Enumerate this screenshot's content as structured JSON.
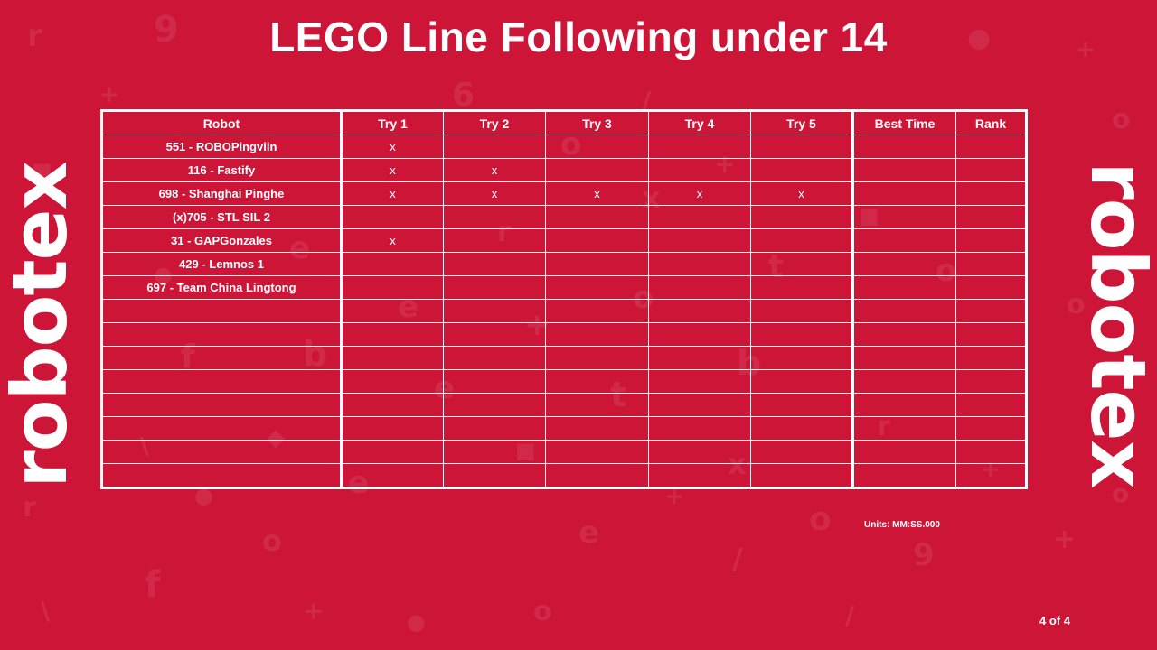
{
  "title": "LEGO Line Following under 14",
  "brand": "robotex",
  "colors": {
    "background": "#cd1537",
    "foreground": "#ffffff"
  },
  "table": {
    "headers": [
      "Robot",
      "Try 1",
      "Try 2",
      "Try 3",
      "Try 4",
      "Try 5",
      "Best Time",
      "Rank"
    ],
    "rows": [
      [
        "551 - ROBOPingviin",
        "x",
        "",
        "",
        "",
        "",
        "",
        ""
      ],
      [
        "116 - Fastify",
        "x",
        "x",
        "",
        "",
        "",
        "",
        ""
      ],
      [
        "698 - Shanghai Pinghe",
        "x",
        "x",
        "x",
        "x",
        "x",
        "",
        ""
      ],
      [
        "(x)705 - STL SIL 2",
        "",
        "",
        "",
        "",
        "",
        "",
        ""
      ],
      [
        "31 - GAPGonzales",
        "x",
        "",
        "",
        "",
        "",
        "",
        ""
      ],
      [
        "429 - Lemnos 1",
        "",
        "",
        "",
        "",
        "",
        "",
        ""
      ],
      [
        "697 - Team China Lingtong",
        "",
        "",
        "",
        "",
        "",
        "",
        ""
      ],
      [
        "",
        "",
        "",
        "",
        "",
        "",
        "",
        ""
      ],
      [
        "",
        "",
        "",
        "",
        "",
        "",
        "",
        ""
      ],
      [
        "",
        "",
        "",
        "",
        "",
        "",
        "",
        ""
      ],
      [
        "",
        "",
        "",
        "",
        "",
        "",
        "",
        ""
      ],
      [
        "",
        "",
        "",
        "",
        "",
        "",
        "",
        ""
      ],
      [
        "",
        "",
        "",
        "",
        "",
        "",
        "",
        ""
      ],
      [
        "",
        "",
        "",
        "",
        "",
        "",
        "",
        ""
      ],
      [
        "",
        "",
        "",
        "",
        "",
        "",
        "",
        ""
      ]
    ]
  },
  "units": "Units: MM:SS.000",
  "page": "4 of 4"
}
